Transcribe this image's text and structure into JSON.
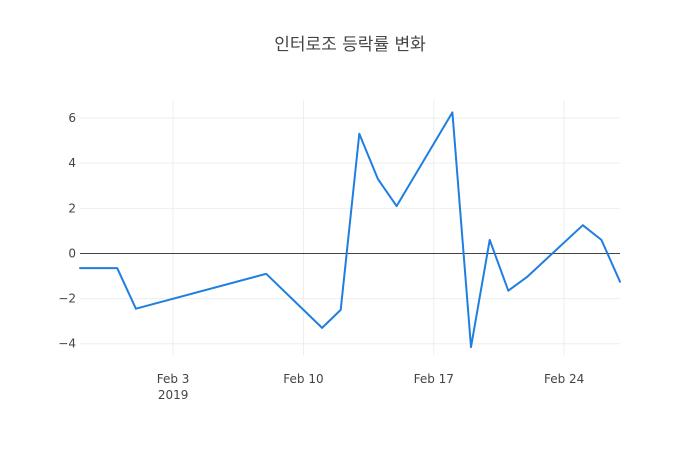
{
  "chart_data": {
    "type": "line",
    "title": "인터로조 등락률 변화",
    "xlabel": "",
    "ylabel": "",
    "x_axis_type": "date",
    "xlim": [
      "2019-01-29",
      "2019-02-27"
    ],
    "ylim": [
      -4.5,
      6.8
    ],
    "x_ticks": [
      {
        "date": "2019-02-03",
        "label": "Feb 3",
        "sublabel": "2019"
      },
      {
        "date": "2019-02-10",
        "label": "Feb 10",
        "sublabel": ""
      },
      {
        "date": "2019-02-17",
        "label": "Feb 17",
        "sublabel": ""
      },
      {
        "date": "2019-02-24",
        "label": "Feb 24",
        "sublabel": ""
      }
    ],
    "y_ticks": [
      -4,
      -2,
      0,
      2,
      4,
      6
    ],
    "y_tick_labels": [
      "−4",
      "−2",
      "0",
      "2",
      "4",
      "6"
    ],
    "grid": true,
    "zero_line": true,
    "series": [
      {
        "color": "#1f7fe0",
        "x": [
          "2019-01-29",
          "2019-01-31",
          "2019-02-01",
          "2019-02-08",
          "2019-02-11",
          "2019-02-12",
          "2019-02-13",
          "2019-02-14",
          "2019-02-15",
          "2019-02-18",
          "2019-02-19",
          "2019-02-20",
          "2019-02-21",
          "2019-02-22",
          "2019-02-25",
          "2019-02-26",
          "2019-02-27"
        ],
        "y": [
          -0.65,
          -0.65,
          -2.45,
          -0.9,
          -3.3,
          -2.5,
          5.3,
          3.3,
          2.1,
          6.25,
          -4.15,
          0.6,
          -1.65,
          -1.05,
          1.25,
          0.6,
          -1.25
        ]
      }
    ]
  }
}
